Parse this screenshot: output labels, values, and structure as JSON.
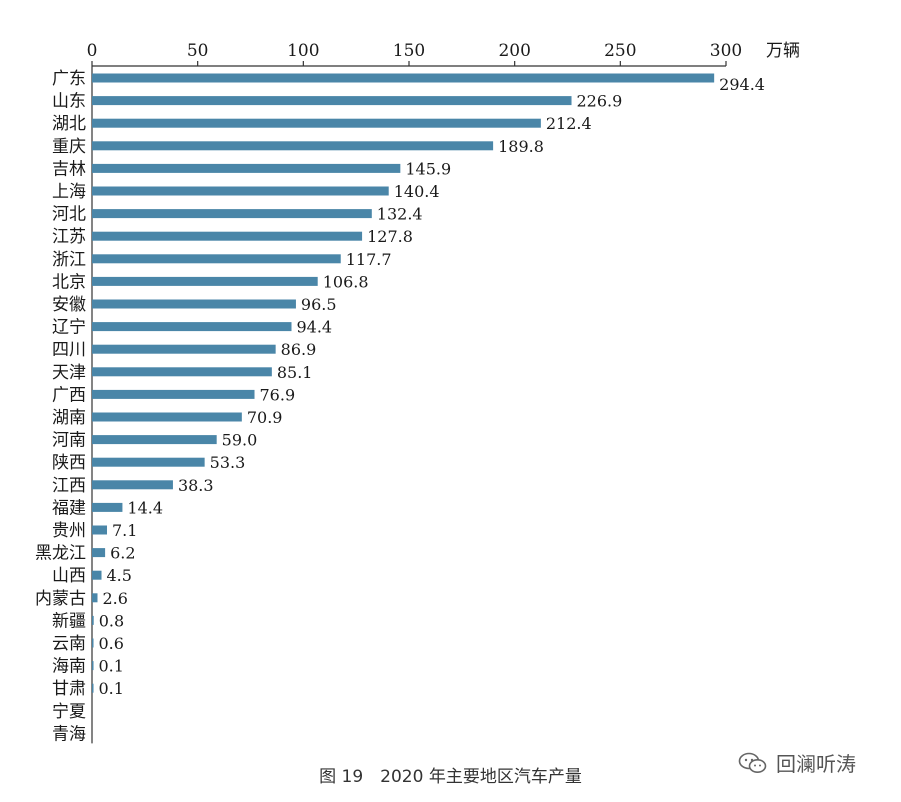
{
  "chart_data": {
    "type": "bar",
    "orientation": "horizontal",
    "unit": "万辆",
    "xlim": [
      0,
      300
    ],
    "xticks": [
      "0",
      "50",
      "100",
      "150",
      "200",
      "250",
      "300"
    ],
    "xaxis_position": "top",
    "grid": false,
    "bar_color": "#4a86a8",
    "categories": [
      "广东",
      "山东",
      "湖北",
      "重庆",
      "吉林",
      "上海",
      "河北",
      "江苏",
      "浙江",
      "北京",
      "安徽",
      "辽宁",
      "四川",
      "天津",
      "广西",
      "湖南",
      "河南",
      "陕西",
      "江西",
      "福建",
      "贵州",
      "黑龙江",
      "山西",
      "内蒙古",
      "新疆",
      "云南",
      "海南",
      "甘肃",
      "宁夏",
      "青海"
    ],
    "values": [
      294.4,
      226.9,
      212.4,
      189.8,
      145.9,
      140.4,
      132.4,
      127.8,
      117.7,
      106.8,
      96.5,
      94.4,
      86.9,
      85.1,
      76.9,
      70.9,
      59.0,
      53.3,
      38.3,
      14.4,
      7.1,
      6.2,
      4.5,
      2.6,
      0.8,
      0.6,
      0.1,
      0.1,
      null,
      null
    ],
    "value_labels": [
      "294.4",
      "226.9",
      "212.4",
      "189.8",
      "145.9",
      "140.4",
      "132.4",
      "127.8",
      "117.7",
      "106.8",
      "96.5",
      "94.4",
      "86.9",
      "85.1",
      "76.9",
      "70.9",
      "59.0",
      "53.3",
      "38.3",
      "14.4",
      "7.1",
      "6.2",
      "4.5",
      "2.6",
      "0.8",
      "0.6",
      "0.1",
      "0.1",
      "",
      ""
    ]
  },
  "caption": "图 19　2020 年主要地区汽车产量",
  "watermark": {
    "text": "回澜听涛",
    "icon": "wechat-icon"
  }
}
